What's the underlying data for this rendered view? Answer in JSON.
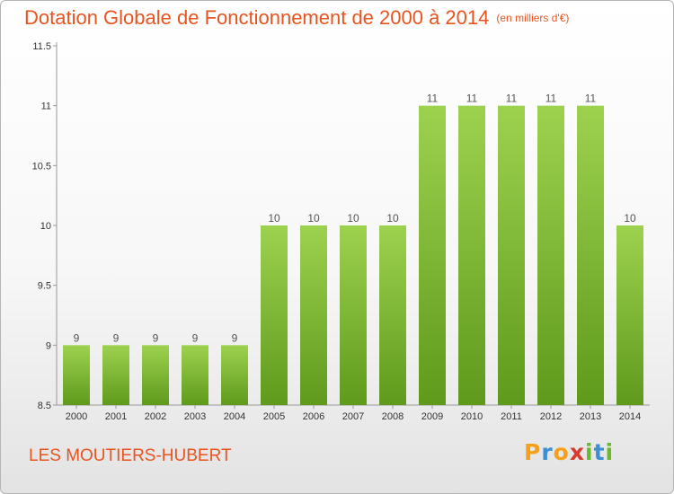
{
  "title": "Dotation Globale de Fonctionnement de 2000 à 2014",
  "unit": "(en milliers d'€)",
  "commune": "LES MOUTIERS-HUBERT",
  "logo": {
    "text": "Proxiti",
    "letters": [
      "P",
      "r",
      "o",
      "x",
      "i",
      "t",
      "i"
    ],
    "colors": [
      "#f6a01a",
      "#3c8fd0",
      "#f6a01a",
      "#d93a2f",
      "#6ab82e",
      "#3c8fd0",
      "#6ab82e"
    ]
  },
  "colors": {
    "title": "#e8541f",
    "bar_top": "#9dd24f",
    "bar_bottom": "#5f9a1c",
    "axis": "#999999"
  },
  "chart_data": {
    "type": "bar",
    "categories": [
      "2000",
      "2001",
      "2002",
      "2003",
      "2004",
      "2005",
      "2006",
      "2007",
      "2008",
      "2009",
      "2010",
      "2011",
      "2012",
      "2013",
      "2014"
    ],
    "values": [
      9,
      9,
      9,
      9,
      9,
      10,
      10,
      10,
      10,
      11,
      11,
      11,
      11,
      11,
      10
    ],
    "data_labels": [
      "9",
      "9",
      "9",
      "9",
      "9",
      "10",
      "10",
      "10",
      "10",
      "11",
      "11",
      "11",
      "11",
      "11",
      "10"
    ],
    "ylim": [
      8.5,
      11.5
    ],
    "yticks": [
      8.5,
      9,
      9.5,
      10,
      10.5,
      11,
      11.5
    ],
    "ytick_labels": [
      "8.5",
      "9",
      "9.5",
      "10",
      "10.5",
      "11",
      "11.5"
    ],
    "grid": false,
    "legend": "none"
  }
}
